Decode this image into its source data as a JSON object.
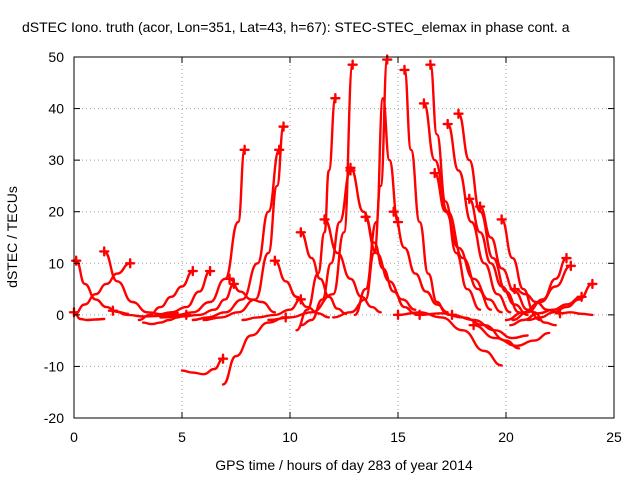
{
  "chart_data": {
    "type": "scatter",
    "title": "dSTEC Iono. truth (acor, Lon=351, Lat=43, h=67): STEC-STEC_elemax in phase cont. a",
    "xlabel": "GPS time / hours of day 283 of year 2014",
    "ylabel": "dSTEC  / TECUs",
    "xlim": [
      0,
      25
    ],
    "ylim": [
      -20,
      50
    ],
    "xticks": [
      0,
      5,
      10,
      15,
      20,
      25
    ],
    "yticks": [
      -20,
      -10,
      0,
      10,
      20,
      30,
      40,
      50
    ],
    "x_tick_labels": [
      "0",
      "5",
      "10",
      "15",
      "20",
      "25"
    ],
    "y_tick_labels": [
      "-20",
      "-10",
      "0",
      "10",
      "20",
      "30",
      "40",
      "50"
    ],
    "grid": true,
    "marker": "+",
    "color": "#ff0000",
    "series": [
      {
        "x": [
          0.0,
          0.3,
          0.6,
          1.0,
          1.4
        ],
        "y": [
          0.5,
          -0.8,
          -1.0,
          -0.9,
          -0.8
        ]
      },
      {
        "x": [
          0.1,
          0.5,
          1.0,
          1.5,
          2.0,
          2.5
        ],
        "y": [
          10.5,
          6.0,
          3.0,
          1.5,
          0.6,
          0.2
        ]
      },
      {
        "x": [
          0.0,
          0.5,
          1.0,
          1.5,
          2.0,
          2.6
        ],
        "y": [
          0.0,
          2.0,
          4.0,
          6.0,
          8.0,
          10.0
        ]
      },
      {
        "x": [
          1.4,
          2.0,
          2.7,
          3.4,
          4.1,
          4.8
        ],
        "y": [
          12.3,
          6.5,
          2.5,
          0.5,
          0.1,
          0.4
        ]
      },
      {
        "x": [
          1.8,
          2.5,
          3.2,
          4.0,
          4.8
        ],
        "y": [
          0.8,
          0.0,
          -0.3,
          -0.2,
          0.0
        ]
      },
      {
        "x": [
          3.2,
          3.6,
          4.0,
          4.4,
          4.8,
          5.2
        ],
        "y": [
          -1.5,
          -1.8,
          -1.5,
          -1.0,
          -0.5,
          0.0
        ]
      },
      {
        "x": [
          3.0,
          3.5,
          4.0,
          4.5,
          5.0,
          5.5
        ],
        "y": [
          -1.0,
          0.0,
          1.5,
          3.5,
          5.5,
          8.5
        ]
      },
      {
        "x": [
          3.8,
          4.5,
          5.2,
          5.8,
          6.3
        ],
        "y": [
          0.0,
          0.5,
          1.5,
          4.5,
          8.5
        ]
      },
      {
        "x": [
          4.0,
          5.0,
          5.8,
          6.5,
          7.0,
          7.4
        ],
        "y": [
          -0.5,
          -0.3,
          0.0,
          1.0,
          3.0,
          6.0
        ]
      },
      {
        "x": [
          5.0,
          5.5,
          6.0,
          6.5,
          6.9
        ],
        "y": [
          -10.8,
          -11.2,
          -11.5,
          -10.5,
          -8.5
        ]
      },
      {
        "x": [
          6.9,
          7.5,
          8.2,
          9.0,
          9.8
        ],
        "y": [
          -13.5,
          -8.0,
          -4.0,
          -1.5,
          -0.5
        ]
      },
      {
        "x": [
          4.8,
          5.5,
          6.3,
          7.0,
          7.6,
          7.9
        ],
        "y": [
          0.0,
          0.5,
          2.5,
          7.0,
          18.0,
          32.0
        ]
      },
      {
        "x": [
          5.5,
          6.2,
          7.0,
          7.8,
          8.5,
          9.0,
          9.5
        ],
        "y": [
          -1.0,
          -0.5,
          0.5,
          3.0,
          10.0,
          20.0,
          32.0
        ]
      },
      {
        "x": [
          6.0,
          6.8,
          7.6,
          8.4,
          9.0,
          9.4,
          9.7
        ],
        "y": [
          -1.0,
          -0.5,
          0.5,
          3.0,
          12.0,
          25.0,
          36.5
        ]
      },
      {
        "x": [
          7.8,
          8.5,
          9.3,
          10.0,
          10.5
        ],
        "y": [
          -1.0,
          -0.5,
          0.0,
          1.0,
          3.0
        ]
      },
      {
        "x": [
          7.2,
          7.7,
          8.2,
          8.7,
          9.3
        ],
        "y": [
          7.0,
          4.5,
          3.0,
          2.5,
          0.5
        ]
      },
      {
        "x": [
          9.3,
          9.8,
          10.3,
          10.8,
          11.3,
          11.8
        ],
        "y": [
          10.5,
          6.5,
          3.5,
          1.5,
          0.3,
          -0.5
        ]
      },
      {
        "x": [
          9.0,
          10.0,
          11.0,
          12.0,
          12.5,
          12.9
        ],
        "y": [
          -1.0,
          -0.5,
          0.5,
          4.0,
          16.0,
          48.5
        ]
      },
      {
        "x": [
          10.3,
          10.8,
          11.3,
          11.6,
          11.8,
          12.1
        ],
        "y": [
          -3.0,
          1.0,
          8.0,
          16.0,
          28.0,
          42.0
        ]
      },
      {
        "x": [
          10.5,
          11.0,
          11.4,
          11.8,
          12.2,
          12.6
        ],
        "y": [
          16.0,
          11.0,
          7.0,
          3.5,
          1.2,
          0.2
        ]
      },
      {
        "x": [
          10.5,
          11.0,
          11.5,
          11.9,
          12.3,
          12.8
        ],
        "y": [
          -2.0,
          -1.0,
          3.0,
          10.0,
          18.0,
          28.0
        ]
      },
      {
        "x": [
          11.6,
          12.2,
          12.8,
          13.3,
          13.8,
          14.2
        ],
        "y": [
          18.5,
          12.0,
          7.0,
          3.5,
          1.5,
          0.5
        ]
      },
      {
        "x": [
          12.8,
          13.4,
          14.0,
          14.6,
          15.2,
          15.8
        ],
        "y": [
          28.5,
          20.0,
          12.0,
          6.5,
          3.0,
          1.0
        ]
      },
      {
        "x": [
          12.0,
          12.8,
          13.5,
          13.9,
          14.2,
          14.5
        ],
        "y": [
          -0.5,
          0.5,
          3.0,
          12.0,
          25.0,
          49.5
        ]
      },
      {
        "x": [
          13.0,
          13.5,
          14.0,
          14.3,
          14.6,
          15.0
        ],
        "y": [
          0.0,
          5.0,
          18.0,
          42.0,
          30.0,
          18.0
        ]
      },
      {
        "x": [
          13.5,
          13.9,
          14.3,
          14.8,
          15.3,
          15.8
        ],
        "y": [
          19.0,
          14.0,
          9.0,
          4.5,
          1.5,
          0.2
        ]
      },
      {
        "x": [
          14.8,
          15.3,
          15.8,
          16.3,
          16.8,
          17.3
        ],
        "y": [
          20.0,
          13.0,
          8.0,
          4.5,
          2.0,
          0.5
        ]
      },
      {
        "x": [
          15.3,
          15.6,
          16.0,
          16.4,
          16.8,
          17.2
        ],
        "y": [
          47.5,
          32.0,
          18.0,
          8.0,
          2.5,
          0.5
        ]
      },
      {
        "x": [
          16.5,
          16.8,
          17.2,
          17.7,
          18.2,
          18.8
        ],
        "y": [
          48.5,
          35.0,
          22.0,
          12.0,
          5.0,
          1.0
        ]
      },
      {
        "x": [
          16.2,
          16.7,
          17.3,
          18.0,
          18.7,
          19.3
        ],
        "y": [
          41.0,
          30.0,
          20.0,
          11.0,
          5.0,
          1.0
        ]
      },
      {
        "x": [
          16.7,
          17.2,
          17.8,
          18.5,
          19.2,
          19.8
        ],
        "y": [
          27.5,
          20.0,
          13.0,
          7.0,
          3.0,
          0.5
        ]
      },
      {
        "x": [
          17.3,
          17.8,
          18.4,
          19.0,
          19.6,
          20.2
        ],
        "y": [
          37.0,
          28.0,
          18.0,
          10.0,
          4.0,
          0.5
        ]
      },
      {
        "x": [
          17.8,
          18.3,
          18.8,
          19.4,
          20.0,
          20.6
        ],
        "y": [
          39.0,
          30.0,
          20.0,
          11.0,
          4.5,
          0.5
        ]
      },
      {
        "x": [
          18.3,
          18.8,
          19.3,
          19.8,
          20.4,
          21.0
        ],
        "y": [
          22.5,
          16.0,
          10.0,
          5.5,
          2.0,
          0.0
        ]
      },
      {
        "x": [
          18.8,
          19.3,
          19.8,
          20.4,
          21.0,
          21.6
        ],
        "y": [
          21.0,
          15.0,
          9.0,
          4.5,
          1.0,
          -1.0
        ]
      },
      {
        "x": [
          19.8,
          20.3,
          20.8,
          21.3,
          21.8,
          22.3
        ],
        "y": [
          18.5,
          11.0,
          5.0,
          0.5,
          -1.5,
          -2.0
        ]
      },
      {
        "x": [
          15.0,
          16.0,
          17.0,
          18.0,
          19.0,
          19.8
        ],
        "y": [
          0.0,
          0.5,
          -0.5,
          -3.0,
          -7.0,
          -9.8
        ]
      },
      {
        "x": [
          16.0,
          17.0,
          18.0,
          19.0,
          20.0,
          20.6
        ],
        "y": [
          0.0,
          0.3,
          -0.5,
          -2.0,
          -5.0,
          -6.5
        ]
      },
      {
        "x": [
          18.5,
          19.5,
          20.5,
          21.3,
          22.0
        ],
        "y": [
          -2.0,
          -4.5,
          -6.0,
          -5.0,
          -3.5
        ]
      },
      {
        "x": [
          17.5,
          18.5,
          19.5,
          20.3,
          21.0
        ],
        "y": [
          0.0,
          -1.0,
          -3.0,
          -4.5,
          -4.0
        ]
      },
      {
        "x": [
          20.2,
          20.8,
          21.5,
          22.2,
          22.8,
          23.5
        ],
        "y": [
          -2.0,
          -1.0,
          0.3,
          1.0,
          2.0,
          3.5
        ]
      },
      {
        "x": [
          20.0,
          20.8,
          21.6,
          22.3,
          23.0
        ],
        "y": [
          -1.0,
          0.5,
          2.5,
          5.5,
          9.5
        ]
      },
      {
        "x": [
          20.3,
          21.0,
          21.7,
          22.3,
          22.8
        ],
        "y": [
          -1.0,
          0.5,
          3.0,
          7.0,
          11.0
        ]
      },
      {
        "x": [
          20.4,
          20.9,
          21.4,
          21.9,
          22.4
        ],
        "y": [
          5.0,
          4.0,
          2.5,
          1.0,
          0.5
        ]
      },
      {
        "x": [
          21.0,
          21.6,
          22.2,
          22.8,
          23.4,
          24.0
        ],
        "y": [
          -1.0,
          -0.5,
          0.5,
          1.5,
          3.0,
          6.0
        ]
      },
      {
        "x": [
          22.5,
          23.0,
          23.5,
          24.0
        ],
        "y": [
          0.3,
          0.5,
          0.2,
          0.0
        ]
      }
    ]
  }
}
